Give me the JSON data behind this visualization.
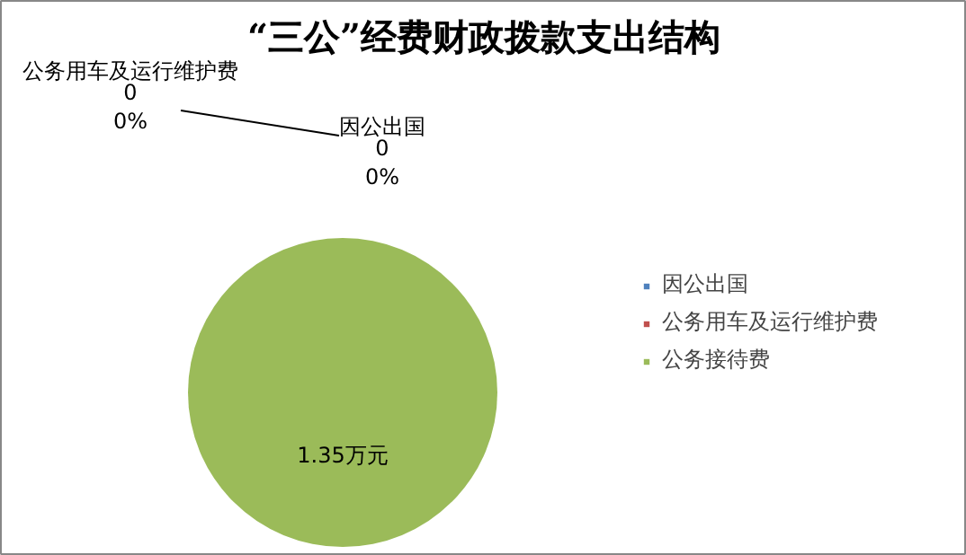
{
  "chart_data": {
    "type": "pie",
    "title": "“三公”经费财政拨款支出结构",
    "categories": [
      "因公出国",
      "公务用车及运行维护费",
      "公务接待费"
    ],
    "values": [
      0,
      0,
      1.35
    ],
    "colors": [
      "#4f81bd",
      "#c0504d",
      "#9bbb59"
    ],
    "value_labels": [
      "0\n0%",
      "0\n0%",
      "1.35万元"
    ],
    "legend": "right"
  }
}
